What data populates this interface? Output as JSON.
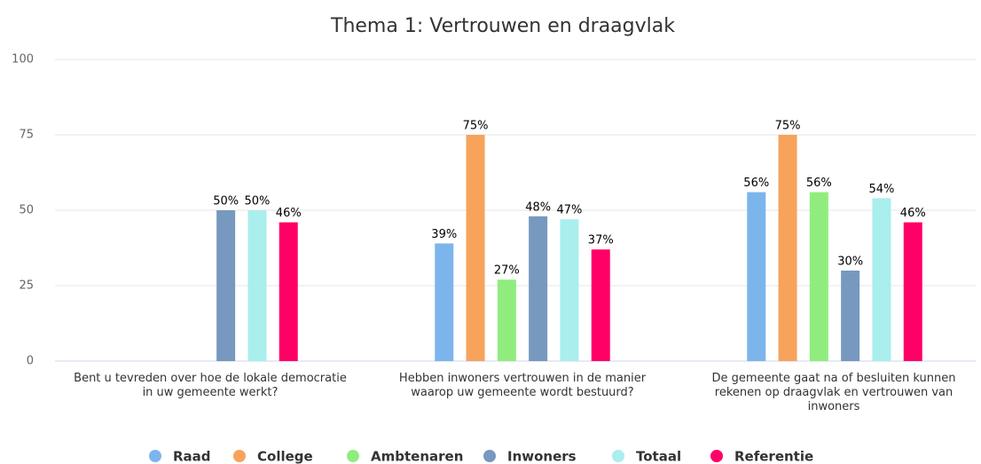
{
  "chart_data": {
    "type": "bar",
    "title": "Thema 1: Vertrouwen en draagvlak",
    "categories": [
      "Bent u tevreden over hoe de lokale democratie in uw gemeente werkt?",
      "Hebben inwoners vertrouwen in de manier waarop uw gemeente wordt bestuurd?",
      "De gemeente gaat na of besluiten kunnen rekenen op draagvlak en vertrouwen van inwoners"
    ],
    "series": [
      {
        "name": "Raad",
        "color": "#7cb5ec",
        "values": [
          null,
          39,
          56
        ],
        "value_labels": [
          null,
          "39%",
          "56%"
        ]
      },
      {
        "name": "College",
        "color": "#f7a35c",
        "values": [
          null,
          75,
          75
        ],
        "value_labels": [
          null,
          "75%",
          "75%"
        ]
      },
      {
        "name": "Ambtenaren",
        "color": "#90ed7d",
        "values": [
          null,
          27,
          56
        ],
        "value_labels": [
          null,
          "27%",
          "56%"
        ]
      },
      {
        "name": "Inwoners",
        "color": "#7798bf",
        "values": [
          50,
          48,
          30
        ],
        "value_labels": [
          "50%",
          "48%",
          "30%"
        ]
      },
      {
        "name": "Totaal",
        "color": "#aaeeee",
        "values": [
          50,
          47,
          54
        ],
        "value_labels": [
          "50%",
          "47%",
          "54%"
        ]
      },
      {
        "name": "Referentie",
        "color": "#ff0066",
        "values": [
          46,
          37,
          46
        ],
        "value_labels": [
          "46%",
          "37%",
          "46%"
        ]
      }
    ],
    "ylim": [
      0,
      100
    ],
    "yticks": [
      0,
      25,
      50,
      75,
      100
    ],
    "grid": true
  }
}
